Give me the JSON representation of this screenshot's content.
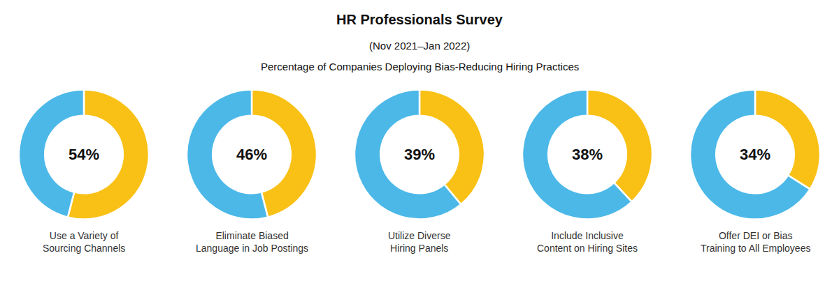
{
  "title": "HR Professionals Survey",
  "subtitle": [
    "(Nov 2021–Jan 2022)",
    "Percentage of Companies Deploying Bias-Reducing Hiring Practices"
  ],
  "chart_data": [
    {
      "type": "pie",
      "title": "Use a Variety of\nSourcing Channels",
      "values": [
        54,
        46
      ],
      "colors": [
        "#F9C116",
        "#4BB8E8"
      ],
      "annotation": "54%"
    },
    {
      "type": "pie",
      "title": "Eliminate Biased\nLanguage in Job Postings",
      "values": [
        46,
        54
      ],
      "colors": [
        "#F9C116",
        "#4BB8E8"
      ],
      "annotation": "46%"
    },
    {
      "type": "pie",
      "title": "Utilize Diverse\nHiring Panels",
      "values": [
        39,
        61
      ],
      "colors": [
        "#F9C116",
        "#4BB8E8"
      ],
      "annotation": "39%"
    },
    {
      "type": "pie",
      "title": "Include Inclusive\nContent on Hiring Sites",
      "values": [
        38,
        62
      ],
      "colors": [
        "#F9C116",
        "#4BB8E8"
      ],
      "annotation": "38%"
    },
    {
      "type": "pie",
      "title": "Offer DEI or Bias\nTraining to All Employees",
      "values": [
        34,
        66
      ],
      "colors": [
        "#F9C116",
        "#4BB8E8"
      ],
      "annotation": "34%"
    }
  ]
}
